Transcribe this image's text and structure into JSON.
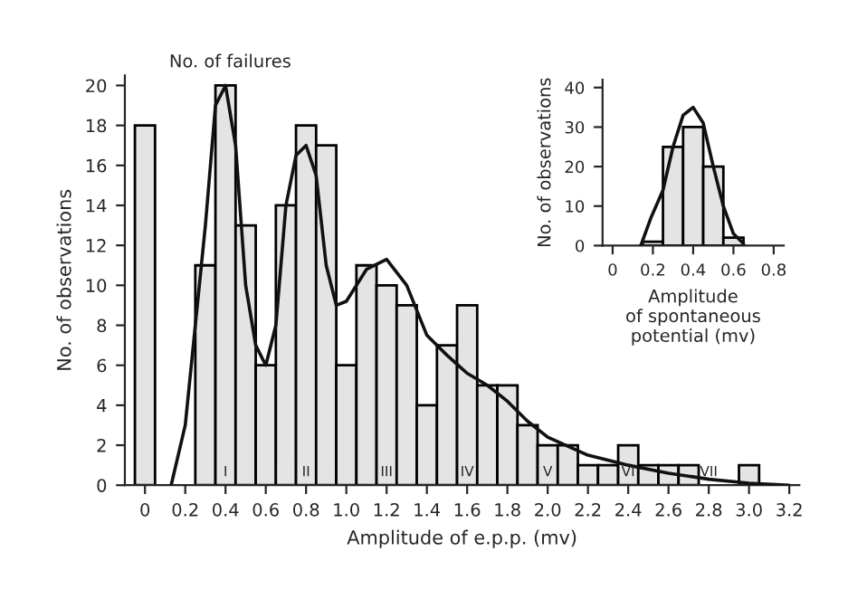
{
  "chart_data": [
    {
      "type": "histogram",
      "xlabel": "Amplitude of e.p.p. (mv)",
      "ylabel": "No. of observations",
      "xlim": [
        -0.1,
        3.25
      ],
      "ylim": [
        0,
        20.5
      ],
      "xticks": [
        0,
        0.2,
        0.4,
        0.6,
        0.8,
        {
          "value": 1,
          "label": "1.0"
        },
        1.2,
        1.4,
        1.6,
        1.8,
        {
          "value": 2,
          "label": "2.0"
        },
        2.2,
        2.4,
        2.6,
        2.8,
        {
          "value": 3,
          "label": "3.0"
        },
        3.2
      ],
      "yticks": [
        0,
        2,
        4,
        6,
        8,
        10,
        12,
        14,
        16,
        18,
        20
      ],
      "grid": false,
      "series": [
        {
          "color": "#e4e4e4",
          "bins": [
            -0.05,
            0.05,
            0.15,
            0.25,
            0.35,
            0.45,
            0.55,
            0.65,
            0.75,
            0.85,
            0.95,
            1.05,
            1.15,
            1.25,
            1.35,
            1.45,
            1.55,
            1.65,
            1.75,
            1.85,
            1.95,
            2.05,
            2.15,
            2.25,
            2.35,
            2.45,
            2.55,
            2.65,
            2.75,
            2.85,
            2.95,
            3.05
          ],
          "values": [
            18,
            0,
            0,
            11,
            20,
            13,
            6,
            14,
            18,
            17,
            6,
            11,
            10,
            9,
            4,
            7,
            9,
            5,
            5,
            3,
            2,
            2,
            1,
            1,
            2,
            1,
            1,
            1,
            0,
            0,
            1
          ]
        },
        {
          "type": "line",
          "color": "#111111",
          "x": [
            0.13,
            0.2,
            0.3,
            0.35,
            0.4,
            0.45,
            0.5,
            0.55,
            0.6,
            0.65,
            0.7,
            0.75,
            0.8,
            0.85,
            0.9,
            0.95,
            1.0,
            1.1,
            1.2,
            1.3,
            1.4,
            1.5,
            1.6,
            1.7,
            1.8,
            1.9,
            2.0,
            2.2,
            2.4,
            2.6,
            2.8,
            3.0,
            3.2
          ],
          "values": [
            0,
            3,
            13,
            19,
            20,
            17,
            10,
            7,
            6,
            8,
            14,
            16.5,
            17,
            15.5,
            11,
            9,
            9.2,
            10.8,
            11.3,
            10,
            7.5,
            6.5,
            5.6,
            5,
            4.2,
            3.2,
            2.4,
            1.5,
            1,
            0.6,
            0.3,
            0.1,
            0
          ]
        }
      ],
      "annotations": [
        "No. of failures",
        "I",
        "II",
        "III",
        "IV",
        "V",
        "VI",
        "VII"
      ]
    },
    {
      "type": "histogram",
      "xlabel": "Amplitude\nof spontaneous\npotential (mv)",
      "ylabel": "No. of observations",
      "xlim": [
        -0.05,
        0.85
      ],
      "ylim": [
        0,
        42
      ],
      "xticks": [
        0,
        0.2,
        0.4,
        0.6,
        0.8
      ],
      "yticks": [
        0,
        10,
        20,
        30,
        40
      ],
      "grid": false,
      "series": [
        {
          "color": "#e4e4e4",
          "bins": [
            0.15,
            0.25,
            0.35,
            0.45,
            0.55,
            0.65
          ],
          "values": [
            1,
            25,
            30,
            20,
            2
          ]
        },
        {
          "type": "line",
          "color": "#111111",
          "x": [
            0.14,
            0.19,
            0.25,
            0.3,
            0.35,
            0.4,
            0.45,
            0.5,
            0.55,
            0.6,
            0.65
          ],
          "values": [
            0,
            7,
            14,
            25,
            33,
            35,
            31,
            20,
            10,
            3,
            0.5
          ]
        }
      ]
    }
  ]
}
